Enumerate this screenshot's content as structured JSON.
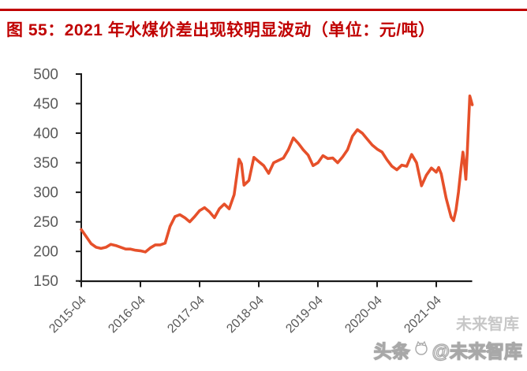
{
  "header": {
    "title": "图 55：2021 年水煤价差出现较明显波动（单位：元/吨）",
    "title_color": "#C00000",
    "rule_color": "#C00000"
  },
  "watermark": {
    "prefix": "头条",
    "suffix": "@未来智库",
    "ghost": "未来智库",
    "logo": "toutiao-cat-logo"
  },
  "chart_data": {
    "type": "line",
    "title": "图 55：2021 年水煤价差出现较明显波动（单位：元/吨）",
    "ylabel": "",
    "xlabel": "",
    "unit": "元/吨",
    "ylim": [
      150,
      500
    ],
    "yticks": [
      150,
      200,
      250,
      300,
      350,
      400,
      450,
      500
    ],
    "xtick_labels": [
      "2015-04",
      "2016-04",
      "2017-04",
      "2018-04",
      "2019-04",
      "2020-04",
      "2021-04"
    ],
    "xtick_months": [
      0,
      12,
      24,
      36,
      48,
      60,
      72
    ],
    "grid": false,
    "legend": "none",
    "series_name": "水煤价差",
    "series_color": "#E6502A",
    "axis_color": "#1a1a1a",
    "label_color": "#595959",
    "points_format": "[months_since_2015-04, value_yuan_per_ton]",
    "points": [
      [
        0,
        237
      ],
      [
        1,
        225
      ],
      [
        2,
        213
      ],
      [
        3,
        207
      ],
      [
        4,
        205
      ],
      [
        5,
        207
      ],
      [
        6,
        212
      ],
      [
        7,
        210
      ],
      [
        8,
        207
      ],
      [
        9,
        204
      ],
      [
        10,
        204
      ],
      [
        11,
        202
      ],
      [
        12,
        201
      ],
      [
        13,
        199
      ],
      [
        14,
        206
      ],
      [
        15,
        211
      ],
      [
        16,
        211
      ],
      [
        17,
        214
      ],
      [
        18,
        242
      ],
      [
        19,
        259
      ],
      [
        20,
        262
      ],
      [
        21,
        257
      ],
      [
        22,
        250
      ],
      [
        23,
        259
      ],
      [
        24,
        269
      ],
      [
        25,
        274
      ],
      [
        26,
        267
      ],
      [
        27,
        257
      ],
      [
        28,
        272
      ],
      [
        29,
        280
      ],
      [
        30,
        272
      ],
      [
        31,
        296
      ],
      [
        32,
        356
      ],
      [
        32.5,
        348
      ],
      [
        33,
        312
      ],
      [
        34,
        320
      ],
      [
        35,
        359
      ],
      [
        36,
        352
      ],
      [
        37,
        345
      ],
      [
        38,
        332
      ],
      [
        39,
        350
      ],
      [
        40,
        354
      ],
      [
        41,
        358
      ],
      [
        42,
        372
      ],
      [
        43,
        392
      ],
      [
        44,
        383
      ],
      [
        45,
        372
      ],
      [
        46,
        363
      ],
      [
        47,
        345
      ],
      [
        48,
        350
      ],
      [
        49,
        362
      ],
      [
        50,
        357
      ],
      [
        51,
        358
      ],
      [
        52,
        350
      ],
      [
        53,
        360
      ],
      [
        54,
        372
      ],
      [
        55,
        395
      ],
      [
        56,
        406
      ],
      [
        57,
        400
      ],
      [
        58,
        390
      ],
      [
        59,
        380
      ],
      [
        60,
        373
      ],
      [
        61,
        368
      ],
      [
        62,
        355
      ],
      [
        63,
        344
      ],
      [
        64,
        338
      ],
      [
        65,
        346
      ],
      [
        66,
        344
      ],
      [
        67,
        364
      ],
      [
        68,
        350
      ],
      [
        69,
        311
      ],
      [
        70,
        329
      ],
      [
        71,
        341
      ],
      [
        72,
        334
      ],
      [
        72.5,
        342
      ],
      [
        73,
        331
      ],
      [
        74,
        290
      ],
      [
        75,
        258
      ],
      [
        75.5,
        252
      ],
      [
        76,
        270
      ],
      [
        76.5,
        300
      ],
      [
        77,
        340
      ],
      [
        77.4,
        368
      ],
      [
        77.7,
        350
      ],
      [
        78,
        322
      ],
      [
        78.3,
        371
      ],
      [
        78.8,
        463
      ],
      [
        79.3,
        448
      ]
    ]
  }
}
